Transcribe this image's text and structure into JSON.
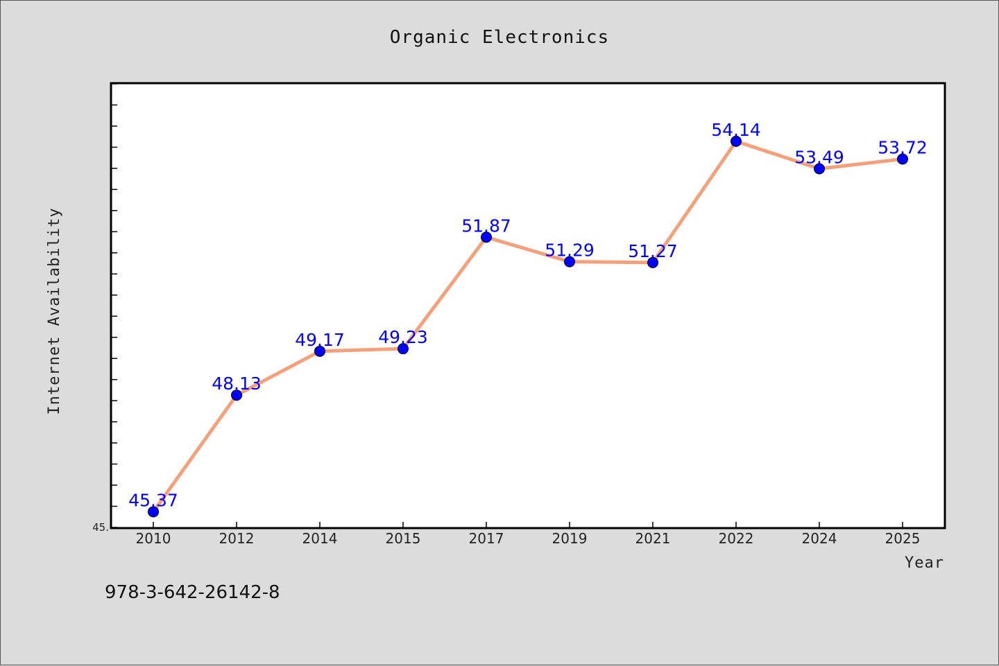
{
  "chart_data": {
    "type": "line",
    "title": "Organic Electronics",
    "xlabel": "Year",
    "ylabel": "Internet Availability",
    "categories": [
      "2010",
      "2012",
      "2014",
      "2015",
      "2017",
      "2019",
      "2021",
      "2022",
      "2024",
      "2025"
    ],
    "series": [
      {
        "values": [
          45.37,
          48.13,
          49.17,
          49.23,
          51.87,
          51.29,
          51.27,
          54.14,
          53.49,
          53.72
        ],
        "data_labels": [
          "45.37",
          "48.13",
          "49.17",
          "49.23",
          "51.87",
          "51.29",
          "51.27",
          "54.14",
          "53.49",
          "53.72"
        ]
      }
    ],
    "ylim": [
      45.0,
      55.5
    ],
    "yticks_labeled": [
      "45."
    ],
    "grid": false,
    "legend": "none",
    "line_color": "#f4a07a",
    "marker_color": "#0000ff",
    "label_color": "#0000ff"
  },
  "footer": {
    "isbn": "978-3-642-26142-8"
  }
}
